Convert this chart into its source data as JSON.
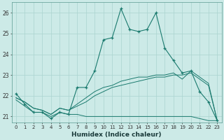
{
  "xlabel": "Humidex (Indice chaleur)",
  "background_color": "#cceae7",
  "line_color": "#1a7a6e",
  "grid_color": "#aad4d0",
  "xlim": [
    -0.5,
    23.5
  ],
  "ylim": [
    20.7,
    26.5
  ],
  "yticks": [
    21,
    22,
    23,
    24,
    25,
    26
  ],
  "xticks": [
    0,
    1,
    2,
    3,
    4,
    5,
    6,
    7,
    8,
    9,
    10,
    11,
    12,
    13,
    14,
    15,
    16,
    17,
    18,
    19,
    20,
    21,
    22,
    23
  ],
  "main_line": {
    "x": [
      0,
      1,
      2,
      3,
      4,
      5,
      6,
      7,
      8,
      9,
      10,
      11,
      12,
      13,
      14,
      15,
      16,
      17,
      18,
      19,
      20,
      21,
      22,
      23
    ],
    "y": [
      22.1,
      21.6,
      21.2,
      21.2,
      20.9,
      21.2,
      21.1,
      22.4,
      22.4,
      23.2,
      24.7,
      24.8,
      26.2,
      25.2,
      25.1,
      25.2,
      26.0,
      24.3,
      23.7,
      23.1,
      23.2,
      22.2,
      21.7,
      20.8
    ]
  },
  "flat_line": {
    "x": [
      0,
      1,
      2,
      3,
      4,
      5,
      6,
      7,
      8,
      9,
      10,
      11,
      12,
      13,
      14,
      15,
      16,
      17,
      18,
      19,
      20,
      21,
      22,
      23
    ],
    "y": [
      21.8,
      21.5,
      21.2,
      21.2,
      21.0,
      21.2,
      21.1,
      21.1,
      21.0,
      21.0,
      21.0,
      21.0,
      21.0,
      21.0,
      21.0,
      21.0,
      21.0,
      21.0,
      21.0,
      21.0,
      21.0,
      20.9,
      20.8,
      20.8
    ]
  },
  "diag_line1": {
    "x": [
      0,
      1,
      2,
      3,
      4,
      5,
      6,
      7,
      8,
      9,
      10,
      11,
      12,
      13,
      14,
      15,
      16,
      17,
      18,
      19,
      20,
      21,
      22,
      23
    ],
    "y": [
      21.9,
      21.7,
      21.4,
      21.3,
      21.1,
      21.4,
      21.3,
      21.5,
      21.7,
      22.0,
      22.2,
      22.4,
      22.5,
      22.6,
      22.7,
      22.8,
      22.9,
      22.9,
      23.0,
      23.0,
      23.1,
      22.8,
      22.5,
      20.8
    ]
  },
  "diag_line2": {
    "x": [
      0,
      1,
      2,
      3,
      4,
      5,
      6,
      7,
      8,
      9,
      10,
      11,
      12,
      13,
      14,
      15,
      16,
      17,
      18,
      19,
      20,
      21,
      22,
      23
    ],
    "y": [
      21.9,
      21.7,
      21.4,
      21.3,
      21.1,
      21.4,
      21.3,
      21.6,
      21.9,
      22.2,
      22.4,
      22.5,
      22.7,
      22.8,
      22.9,
      22.9,
      23.0,
      23.0,
      23.1,
      22.8,
      23.2,
      22.9,
      22.6,
      20.8
    ]
  }
}
